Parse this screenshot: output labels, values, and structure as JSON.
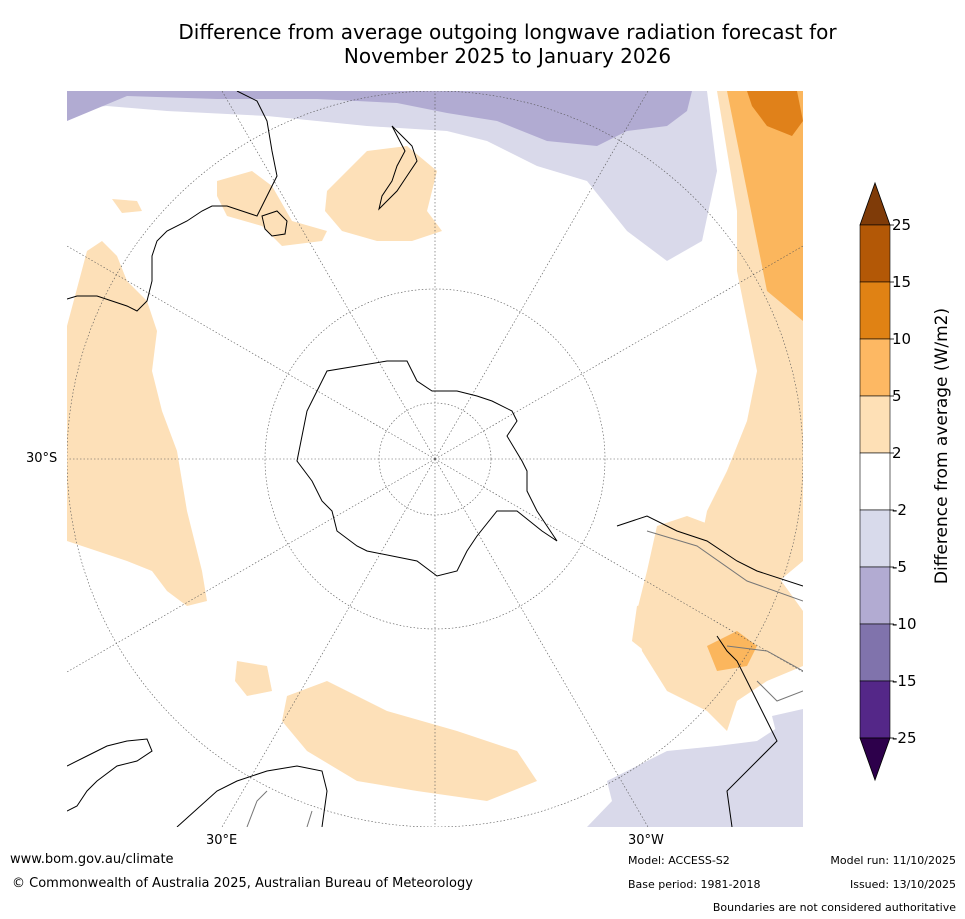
{
  "title_line1": "Difference from average outgoing longwave radiation forecast for",
  "title_line2": "November 2025 to January 2026",
  "map": {
    "lat_label": "30°S",
    "lon_label_left": "30°E",
    "lon_label_right": "30°W",
    "colors": {
      "pos_2_5": "#fde0b8",
      "pos_5_10": "#fbb65d",
      "pos_10_15": "#e0811a",
      "neg_2_5": "#d9d9ea",
      "neg_5_10": "#b1abd2",
      "ocean": "#ffffff",
      "coast": "#000000"
    }
  },
  "colorbar": {
    "label": "Difference from average (W/m2)",
    "ticks": [
      "25",
      "15",
      "10",
      "5",
      "2",
      "-2",
      "-5",
      "-10",
      "-15",
      "-25"
    ],
    "colors": [
      "#7f3b08",
      "#b35806",
      "#e08214",
      "#fdb863",
      "#fee0b6",
      "#ffffff",
      "#d8daeb",
      "#b2abd2",
      "#8073ac",
      "#542788",
      "#2d004b"
    ]
  },
  "footer": {
    "url": "www.bom.gov.au/climate",
    "copyright": "© Commonwealth of Australia 2025, Australian Bureau of Meteorology",
    "model": "Model: ACCESS-S2",
    "base_period": "Base period: 1981-2018",
    "model_run": "Model run: 11/10/2025",
    "issued": "Issued: 13/10/2025",
    "disclaimer": "Boundaries are not considered authoritative"
  }
}
